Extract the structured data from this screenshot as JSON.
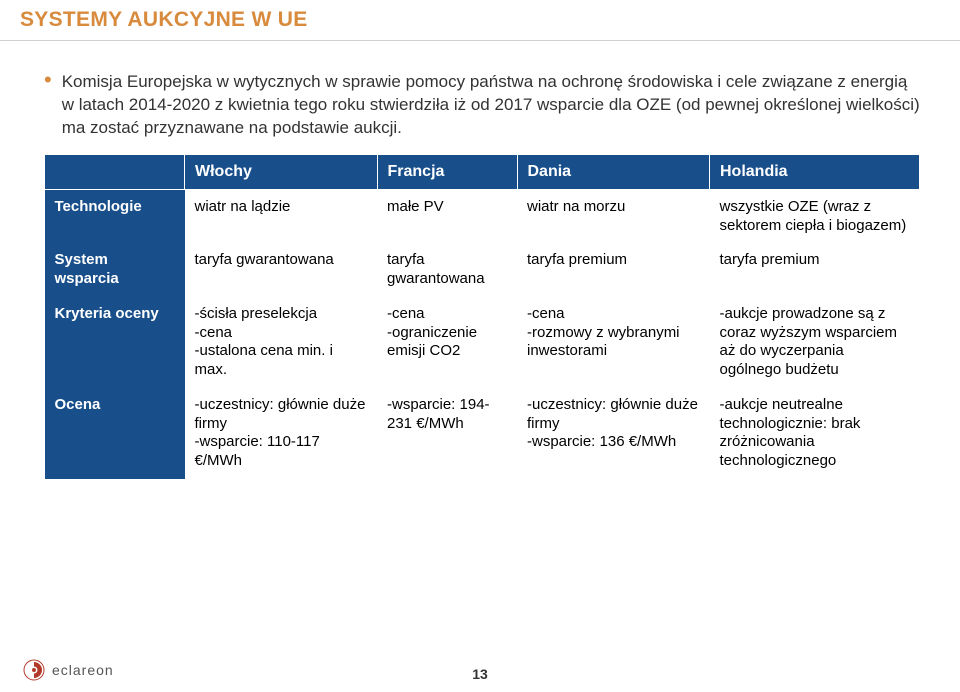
{
  "title": "SYSTEMY AUKCYJNE W UE",
  "paragraph": "Komisja Europejska w wytycznych w sprawie pomocy państwa na ochronę środowiska i cele związane z energią w latach 2014-2020 z kwietnia tego roku stwierdziła iż od 2017 wsparcie dla OZE (od pewnej określonej wielkości) ma zostać przyznawane na podstawie aukcji.",
  "table": {
    "columns": [
      "",
      "Włochy",
      "Francja",
      "Dania",
      "Holandia"
    ],
    "col_widths": [
      "16%",
      "22%",
      "16%",
      "22%",
      "24%"
    ],
    "rows": [
      {
        "head": "Technologie",
        "cells": [
          "wiatr na lądzie",
          "małe PV",
          "wiatr na morzu",
          "wszystkie OZE (wraz z sektorem ciepła i biogazem)"
        ]
      },
      {
        "head": "System wsparcia",
        "cells": [
          "taryfa gwarantowana",
          "taryfa gwarantowana",
          "taryfa premium",
          "taryfa premium"
        ]
      },
      {
        "head": "Kryteria oceny",
        "cells": [
          "-ścisła preselekcja\n-cena\n-ustalona cena min. i max.",
          "-cena\n-ograniczenie emisji CO2",
          "-cena\n-rozmowy z wybranymi inwestorami",
          "-aukcje prowadzone są z coraz wyższym wsparciem aż do wyczerpania ogólnego budżetu"
        ]
      },
      {
        "head": "Ocena",
        "cells": [
          "-uczestnicy: głównie duże firmy\n-wsparcie: 110-117 €/MWh",
          "-wsparcie: 194-231 €/MWh",
          "-uczestnicy: głównie duże firmy\n-wsparcie: 136 €/MWh",
          "-aukcje neutrealne technologicznie: brak zróżnicowania technologicznego"
        ]
      }
    ]
  },
  "colors": {
    "accent": "#d88a3d",
    "header_bg": "#184f8b",
    "header_text": "#ffffff",
    "body_text": "#333333",
    "title_underline": "#d0d0d0"
  },
  "logo_text": "eclareon",
  "page_number": "13"
}
